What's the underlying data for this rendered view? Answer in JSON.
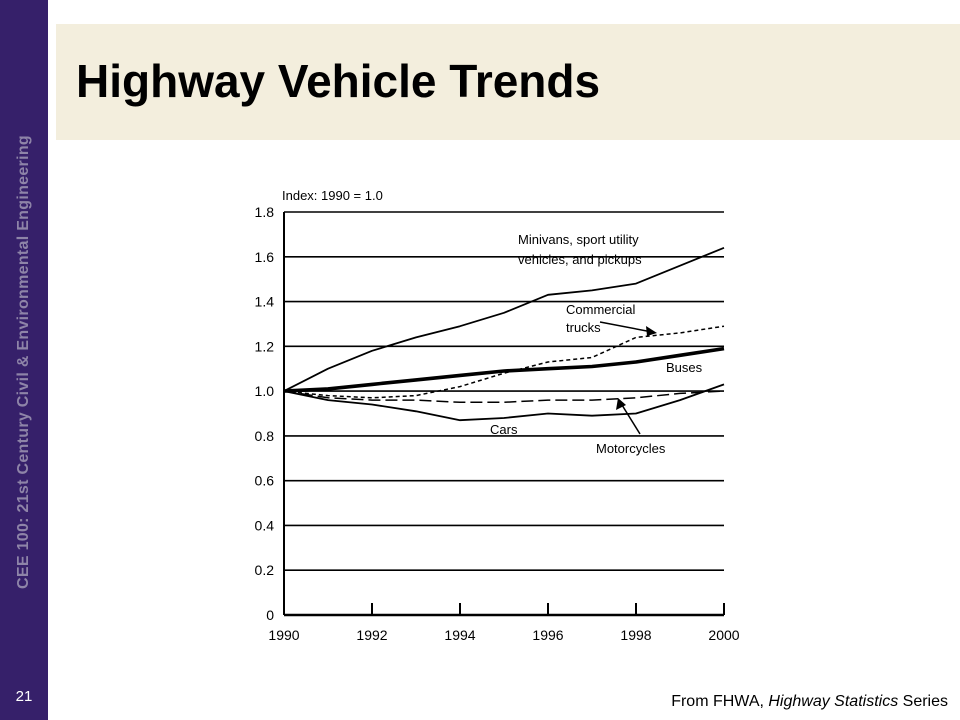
{
  "sidebar": {
    "course_text": "CEE 100: 21st Century Civil & Environmental Engineering",
    "slide_number": "21"
  },
  "slide": {
    "title": "Highway Vehicle Trends"
  },
  "source": {
    "prefix": "From FHWA, ",
    "publication": "Highway Statistics",
    "suffix": " Series"
  },
  "chart_data": {
    "type": "line",
    "title": "Index: 1990 = 1.0",
    "xlim": [
      1990,
      2000
    ],
    "ylim": [
      0,
      1.8
    ],
    "x_ticks": [
      "1990",
      "1992",
      "1994",
      "1996",
      "1998",
      "2000"
    ],
    "y_ticks": [
      "0",
      "0.2",
      "0.4",
      "0.6",
      "0.8",
      "1.0",
      "1.2",
      "1.4",
      "1.6",
      "1.8"
    ],
    "grid": true,
    "series": [
      {
        "name": "Minivans, sport utility vehicles, and pickups",
        "style": "solid",
        "x": [
          1990,
          1991,
          1992,
          1993,
          1994,
          1995,
          1996,
          1997,
          1998,
          1999,
          2000
        ],
        "y": [
          1.0,
          1.1,
          1.18,
          1.24,
          1.29,
          1.35,
          1.43,
          1.45,
          1.48,
          1.56,
          1.64
        ]
      },
      {
        "name": "Commercial trucks",
        "style": "dashed",
        "x": [
          1990,
          1991,
          1992,
          1993,
          1994,
          1995,
          1996,
          1997,
          1998,
          1999,
          2000
        ],
        "y": [
          1.0,
          0.98,
          0.97,
          0.98,
          1.02,
          1.08,
          1.13,
          1.15,
          1.24,
          1.26,
          1.29
        ]
      },
      {
        "name": "Buses",
        "style": "bold",
        "x": [
          1990,
          1991,
          1992,
          1993,
          1994,
          1995,
          1996,
          1997,
          1998,
          1999,
          2000
        ],
        "y": [
          1.0,
          1.01,
          1.03,
          1.05,
          1.07,
          1.09,
          1.1,
          1.11,
          1.13,
          1.16,
          1.19
        ]
      },
      {
        "name": "Cars",
        "style": "solid",
        "x": [
          1990,
          1991,
          1992,
          1993,
          1994,
          1995,
          1996,
          1997,
          1998,
          1999,
          2000
        ],
        "y": [
          1.0,
          0.96,
          0.94,
          0.91,
          0.87,
          0.88,
          0.9,
          0.89,
          0.9,
          0.96,
          1.03
        ]
      },
      {
        "name": "Motorcycles",
        "style": "long-dash",
        "x": [
          1990,
          1991,
          1992,
          1993,
          1994,
          1995,
          1996,
          1997,
          1998,
          1999,
          2000
        ],
        "y": [
          1.0,
          0.97,
          0.96,
          0.96,
          0.95,
          0.95,
          0.96,
          0.96,
          0.97,
          0.99,
          1.0
        ]
      }
    ],
    "annotations": [
      {
        "text": "Minivans, sport utility",
        "series": 0
      },
      {
        "text": "vehicles, and pickups",
        "series": 0
      },
      {
        "text": "Commercial",
        "series": 1
      },
      {
        "text": "trucks",
        "series": 1
      },
      {
        "text": "Buses",
        "series": 2
      },
      {
        "text": "Cars",
        "series": 3
      },
      {
        "text": "Motorcycles",
        "series": 4
      }
    ]
  }
}
